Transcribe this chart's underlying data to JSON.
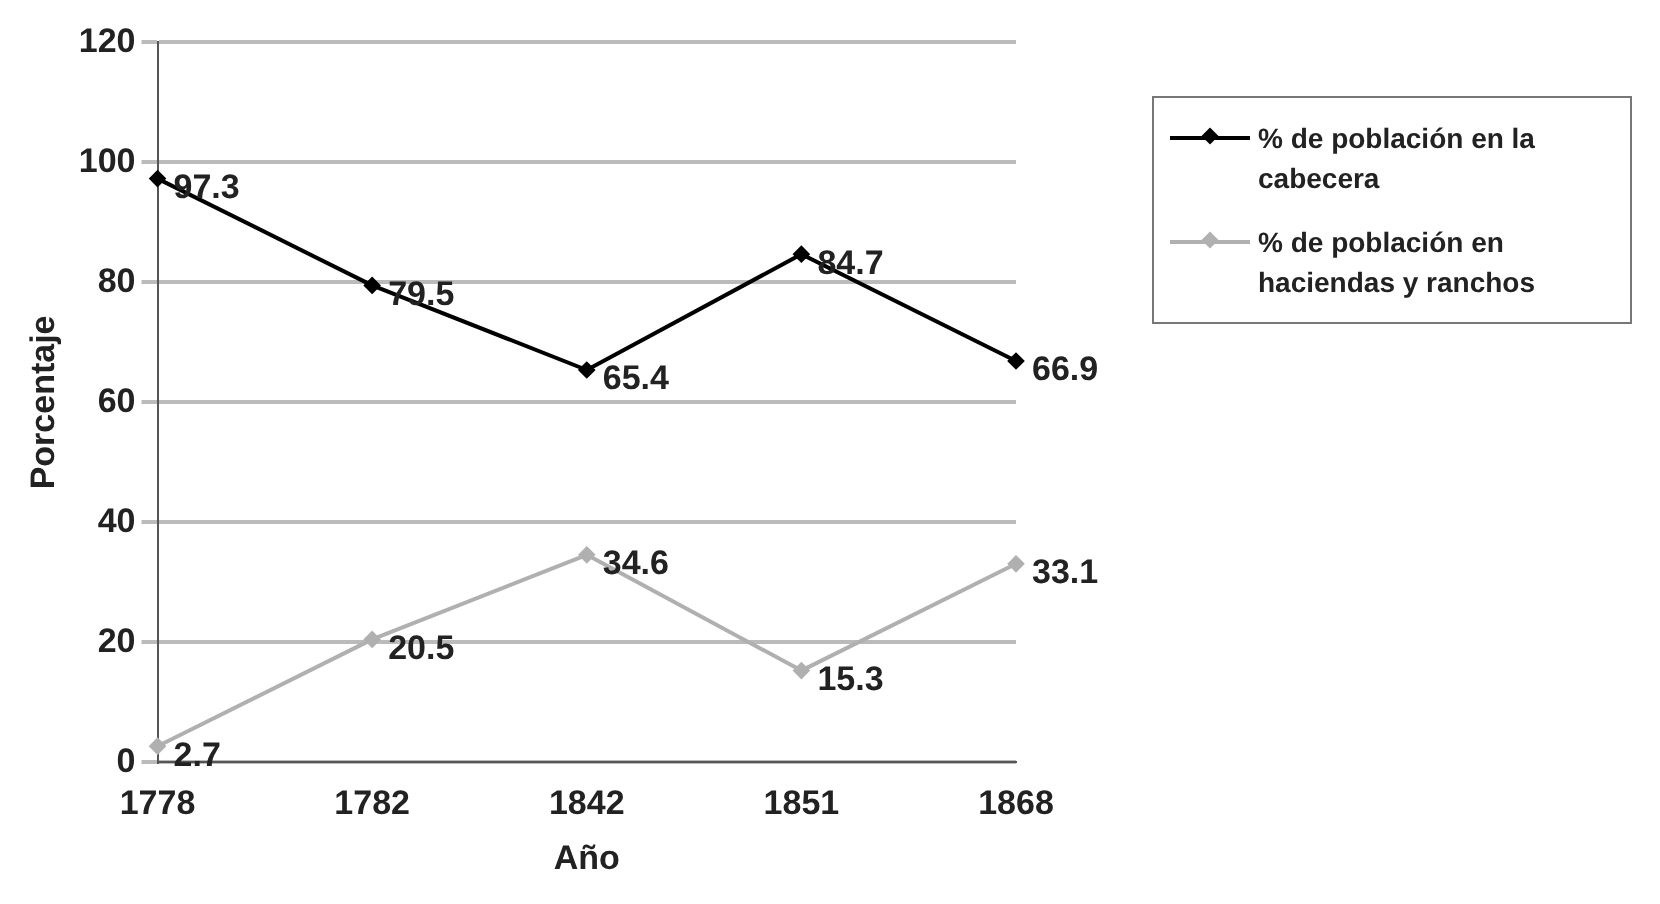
{
  "chart_data": {
    "type": "line",
    "xlabel": "Año",
    "ylabel": "Porcentaje",
    "categories": [
      "1778",
      "1782",
      "1842",
      "1851",
      "1868"
    ],
    "series": [
      {
        "name": "% de población en la cabecera",
        "color": "#000000",
        "values": [
          97.3,
          79.5,
          65.4,
          84.7,
          66.9
        ]
      },
      {
        "name": "% de población en haciendas y ranchos",
        "color": "#b0b0b0",
        "values": [
          2.7,
          20.5,
          34.6,
          15.3,
          33.1
        ]
      }
    ],
    "ylim": [
      0,
      120
    ],
    "yticks": [
      0,
      20,
      40,
      60,
      80,
      100,
      120
    ],
    "grid": "y",
    "legend": "top right",
    "marker": "diamond",
    "line_style": "solid",
    "data_labels": true
  }
}
